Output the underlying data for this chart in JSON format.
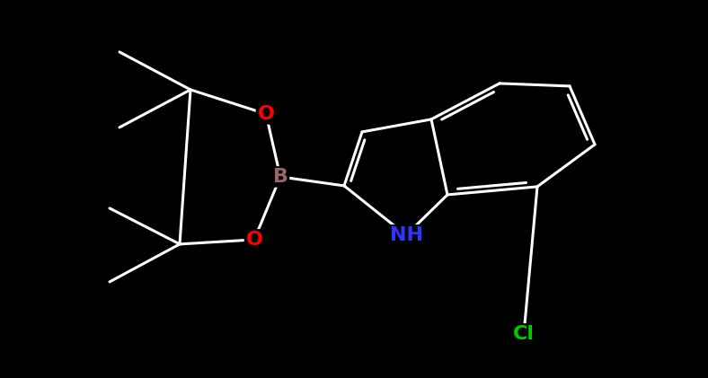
{
  "background_color": "#000000",
  "atom_colors": {
    "C": "#ffffff",
    "N": "#3333ff",
    "O": "#ff0000",
    "B": "#996666",
    "Cl": "#00cc00",
    "H": "#ffffff"
  },
  "bond_color": "#ffffff",
  "bond_width": 2.2,
  "font_size_atom": 16,
  "fig_width": 7.88,
  "fig_height": 4.21,
  "dpi": 100
}
